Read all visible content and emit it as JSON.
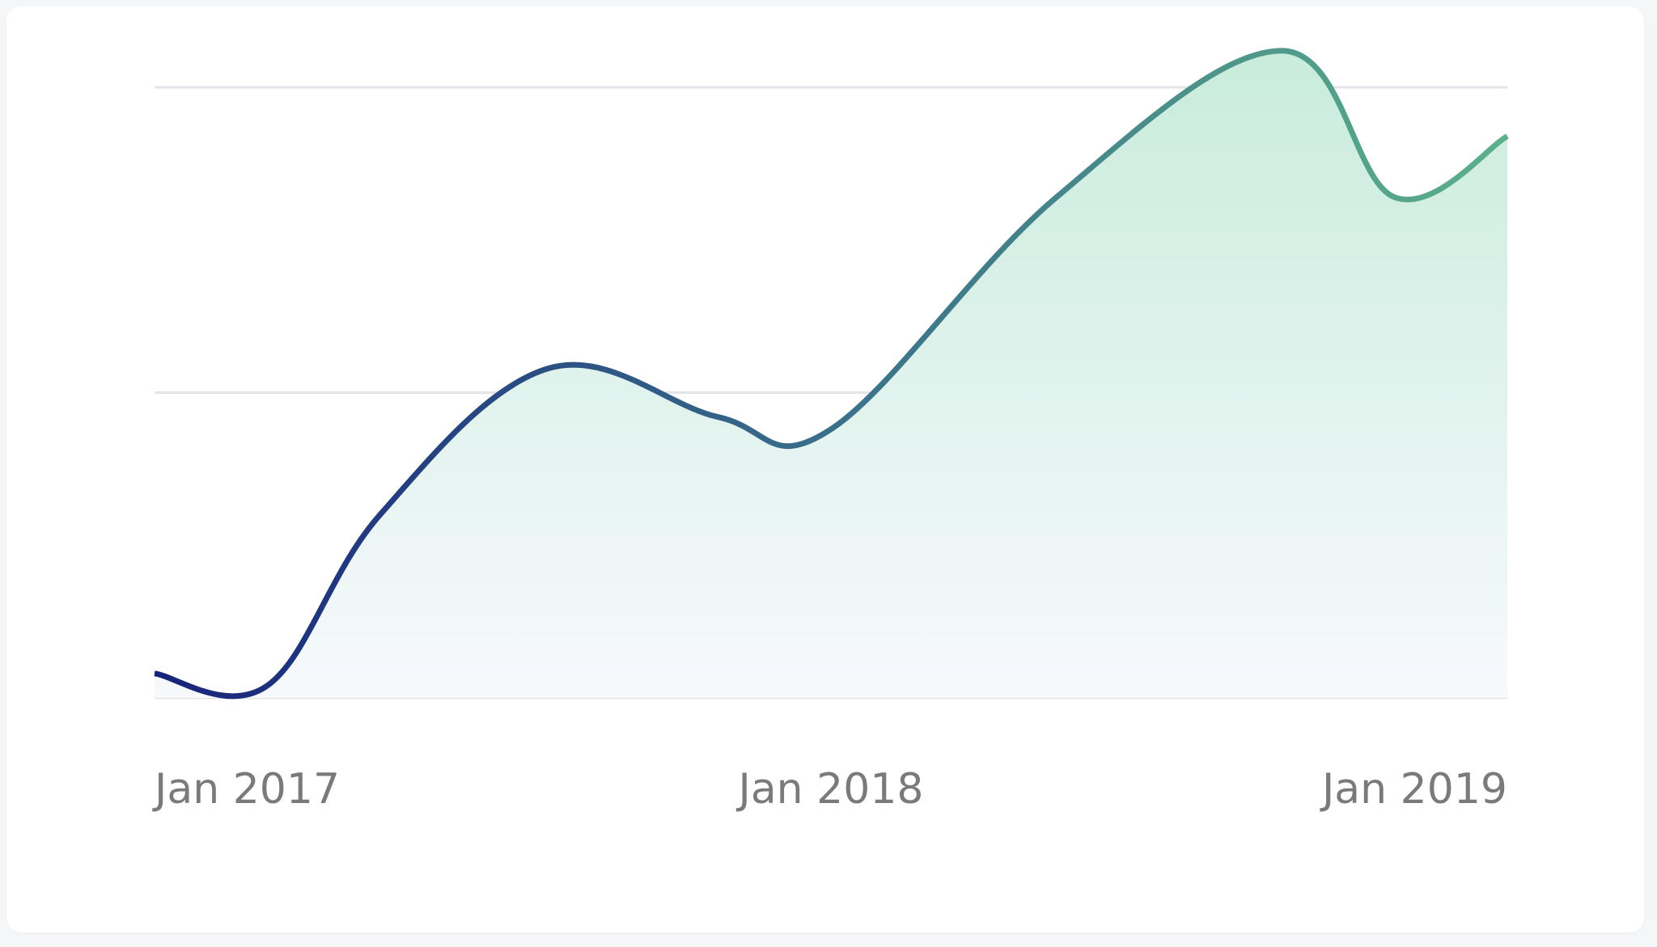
{
  "chart_data": {
    "type": "area",
    "x": [
      "2017-01",
      "2017-03",
      "2017-05",
      "2017-08",
      "2017-11",
      "2018-01",
      "2018-05",
      "2018-09",
      "2018-11",
      "2019-01"
    ],
    "values": [
      17,
      16,
      30,
      42,
      38,
      37,
      56,
      68,
      56,
      61
    ],
    "x_ticks": [
      "Jan 2017",
      "Jan 2018",
      "Jan 2019"
    ],
    "gridlines": [
      15,
      40,
      65
    ],
    "ylim": [
      15,
      65
    ],
    "grid": true,
    "legend": "none",
    "line_gradient": [
      "#17237a",
      "#3a6f8a",
      "#5cb08b"
    ],
    "fill_gradient_top": "#c8ecdc",
    "fill_gradient_bottom": "#f7f9fd",
    "gridline_color": "#e2e4e8",
    "tick_label_color": "#7a7a7a"
  }
}
